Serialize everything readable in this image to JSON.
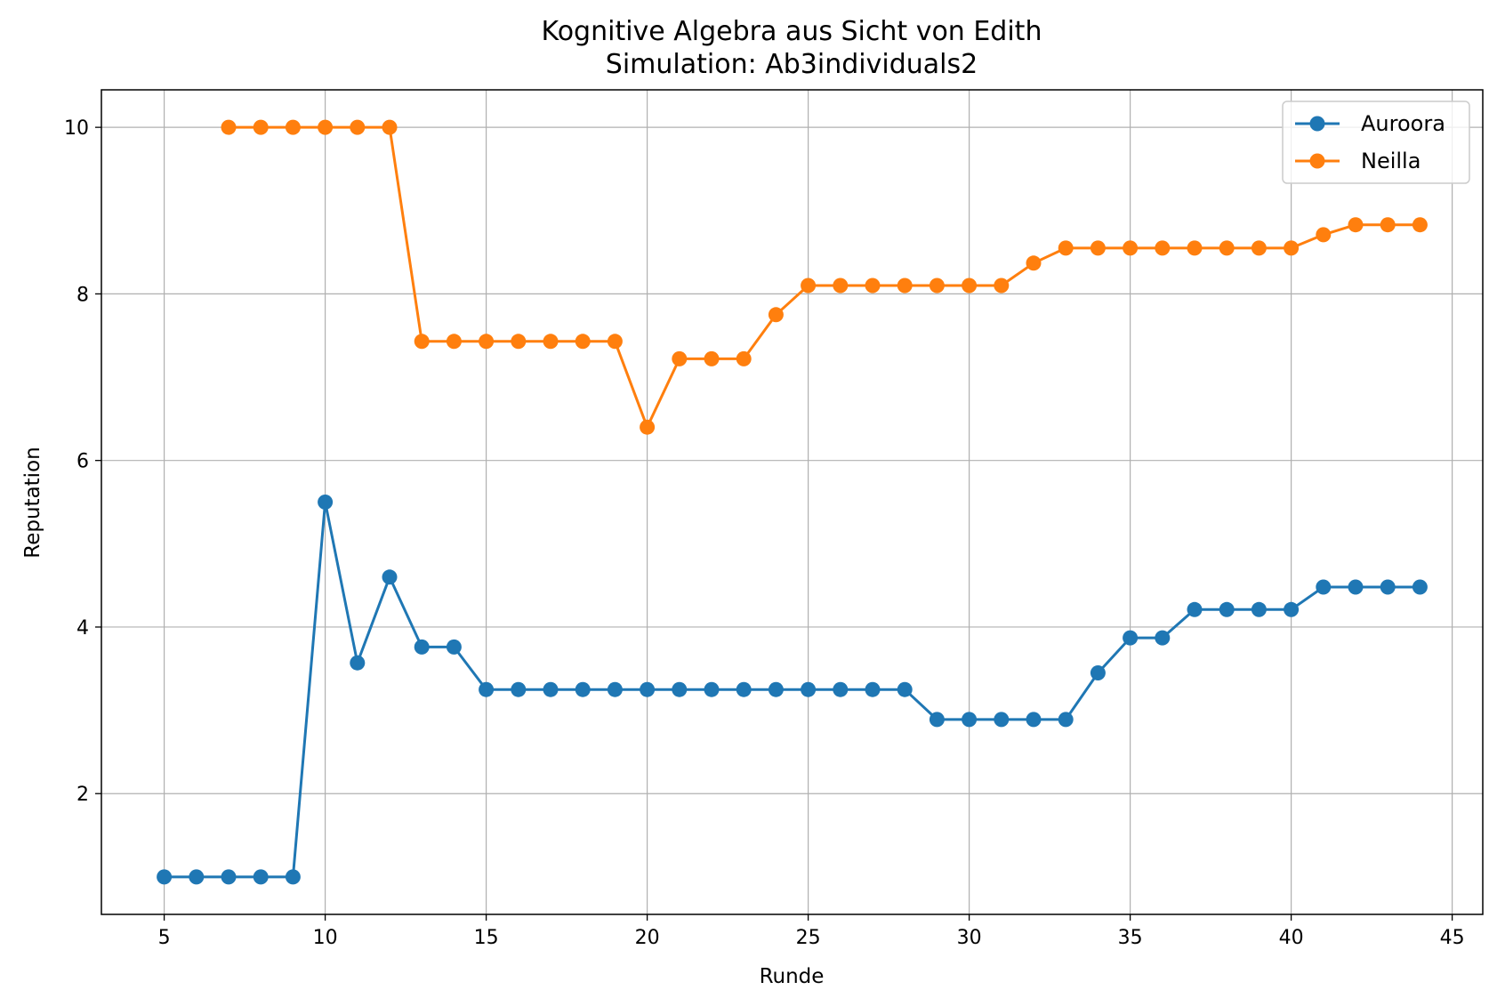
{
  "chart_data": {
    "type": "line",
    "title": "Kognitive Algebra aus Sicht von Edith",
    "subtitle": "Simulation: Ab3individuals2",
    "xlabel": "Runde",
    "ylabel": "Reputation",
    "xlim": [
      3.05,
      45.95
    ],
    "ylim": [
      0.55,
      10.45
    ],
    "xticks": [
      5,
      10,
      15,
      20,
      25,
      30,
      35,
      40,
      45
    ],
    "yticks": [
      2,
      4,
      6,
      8,
      10
    ],
    "grid": true,
    "legend_position": "top-right",
    "series": [
      {
        "name": "Auroora",
        "color": "#1f77b4",
        "x": [
          5,
          6,
          7,
          8,
          9,
          10,
          11,
          12,
          13,
          14,
          15,
          16,
          17,
          18,
          19,
          20,
          21,
          22,
          23,
          24,
          25,
          26,
          27,
          28,
          29,
          30,
          31,
          32,
          33,
          34,
          35,
          36,
          37,
          38,
          39,
          40,
          41,
          42,
          43,
          44
        ],
        "y": [
          1.0,
          1.0,
          1.0,
          1.0,
          1.0,
          5.5,
          3.57,
          4.6,
          3.76,
          3.76,
          3.25,
          3.25,
          3.25,
          3.25,
          3.25,
          3.25,
          3.25,
          3.25,
          3.25,
          3.25,
          3.25,
          3.25,
          3.25,
          3.25,
          2.89,
          2.89,
          2.89,
          2.89,
          2.89,
          3.45,
          3.87,
          3.87,
          4.21,
          4.21,
          4.21,
          4.21,
          4.48,
          4.48,
          4.48,
          4.48
        ]
      },
      {
        "name": "Neilla",
        "color": "#ff7f0e",
        "x": [
          7,
          8,
          9,
          10,
          11,
          12,
          13,
          14,
          15,
          16,
          17,
          18,
          19,
          20,
          21,
          22,
          23,
          24,
          25,
          26,
          27,
          28,
          29,
          30,
          31,
          32,
          33,
          34,
          35,
          36,
          37,
          38,
          39,
          40,
          41,
          42,
          43,
          44
        ],
        "y": [
          10.0,
          10.0,
          10.0,
          10.0,
          10.0,
          10.0,
          7.43,
          7.43,
          7.43,
          7.43,
          7.43,
          7.43,
          7.43,
          6.4,
          7.22,
          7.22,
          7.22,
          7.75,
          8.1,
          8.1,
          8.1,
          8.1,
          8.1,
          8.1,
          8.1,
          8.37,
          8.55,
          8.55,
          8.55,
          8.55,
          8.55,
          8.55,
          8.55,
          8.55,
          8.71,
          8.83,
          8.83,
          8.83
        ]
      }
    ]
  }
}
